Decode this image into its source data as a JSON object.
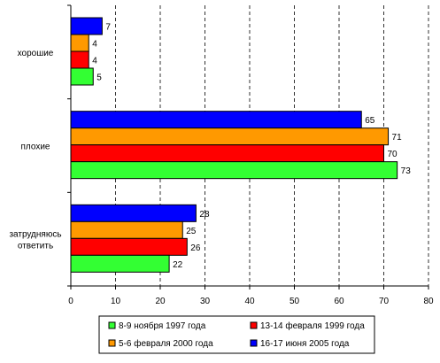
{
  "chart_data": {
    "type": "bar",
    "orientation": "horizontal",
    "categories": [
      "хорошие",
      "плохие",
      "затрудняюсь ответить"
    ],
    "category_lines": [
      [
        "хорошие"
      ],
      [
        "плохие"
      ],
      [
        "затрудняюсь",
        "ответить"
      ]
    ],
    "series": [
      {
        "name": "16-17 июня 2005 года",
        "color": "#0000ff",
        "values": [
          7,
          65,
          28
        ]
      },
      {
        "name": "5-6 февраля 2000 года",
        "color": "#ff9900",
        "values": [
          4,
          71,
          25
        ]
      },
      {
        "name": "13-14 февраля 1999 года",
        "color": "#ff0000",
        "values": [
          4,
          70,
          26
        ]
      },
      {
        "name": "8-9 ноября 1997 года",
        "color": "#33ff33",
        "values": [
          5,
          73,
          22
        ]
      }
    ],
    "legend_order": [
      "8-9 ноября 1997 года",
      "13-14 февраля 1999 года",
      "5-6 февраля 2000 года",
      "16-17 июня 2005 года"
    ],
    "xlim": [
      0,
      80
    ],
    "xticks": [
      0,
      10,
      20,
      30,
      40,
      50,
      60,
      70,
      80
    ],
    "grid": "vertical dashed",
    "data_labels": true,
    "legend_position": "bottom"
  }
}
